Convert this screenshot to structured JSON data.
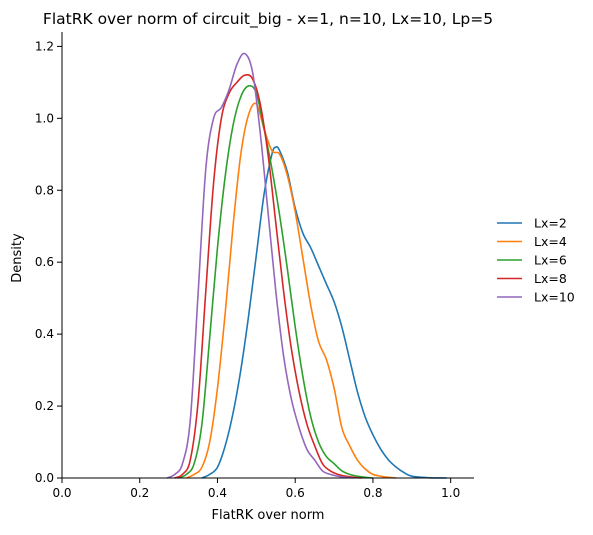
{
  "chart_data": {
    "type": "line",
    "title": "FlatRK over norm of circuit_big - x=1, n=10, Lx=10, Lp=5",
    "xlabel": "FlatRK over norm",
    "ylabel": "Density",
    "xlim": [
      0.0,
      1.06
    ],
    "ylim": [
      0.0,
      1.24
    ],
    "xticks": [
      "0.0",
      "0.2",
      "0.4",
      "0.6",
      "0.8",
      "1.0"
    ],
    "yticks": [
      "0.0",
      "0.2",
      "0.4",
      "0.6",
      "0.8",
      "1.0",
      "1.2"
    ],
    "grid": false,
    "legend_position": "right",
    "series": [
      {
        "name": "Lx=2",
        "color": "#1f77b4",
        "x": [
          0.36,
          0.38,
          0.4,
          0.42,
          0.44,
          0.46,
          0.48,
          0.5,
          0.52,
          0.54,
          0.55,
          0.56,
          0.58,
          0.6,
          0.62,
          0.64,
          0.66,
          0.68,
          0.7,
          0.72,
          0.74,
          0.76,
          0.78,
          0.8,
          0.82,
          0.84,
          0.86,
          0.88,
          0.9,
          0.94,
          0.99
        ],
        "y": [
          0.0,
          0.01,
          0.03,
          0.09,
          0.18,
          0.3,
          0.45,
          0.62,
          0.79,
          0.9,
          0.92,
          0.91,
          0.85,
          0.75,
          0.68,
          0.64,
          0.59,
          0.54,
          0.49,
          0.42,
          0.33,
          0.24,
          0.17,
          0.12,
          0.08,
          0.05,
          0.03,
          0.015,
          0.005,
          0.001,
          0.0
        ]
      },
      {
        "name": "Lx=4",
        "color": "#ff7f0e",
        "x": [
          0.32,
          0.34,
          0.36,
          0.38,
          0.4,
          0.42,
          0.44,
          0.46,
          0.48,
          0.5,
          0.52,
          0.54,
          0.56,
          0.58,
          0.6,
          0.62,
          0.64,
          0.66,
          0.68,
          0.7,
          0.72,
          0.74,
          0.76,
          0.78,
          0.8,
          0.82,
          0.84,
          0.86
        ],
        "y": [
          0.0,
          0.01,
          0.03,
          0.1,
          0.25,
          0.46,
          0.7,
          0.9,
          1.01,
          1.04,
          0.97,
          0.91,
          0.9,
          0.84,
          0.74,
          0.61,
          0.48,
          0.38,
          0.33,
          0.25,
          0.14,
          0.09,
          0.05,
          0.025,
          0.01,
          0.005,
          0.002,
          0.0
        ]
      },
      {
        "name": "Lx=6",
        "color": "#2ca02c",
        "x": [
          0.3,
          0.32,
          0.34,
          0.36,
          0.38,
          0.4,
          0.42,
          0.44,
          0.46,
          0.48,
          0.5,
          0.52,
          0.54,
          0.56,
          0.58,
          0.6,
          0.62,
          0.64,
          0.66,
          0.68,
          0.7,
          0.72,
          0.74,
          0.76,
          0.78,
          0.8
        ],
        "y": [
          0.0,
          0.01,
          0.04,
          0.15,
          0.39,
          0.64,
          0.84,
          0.98,
          1.06,
          1.09,
          1.07,
          0.97,
          0.86,
          0.73,
          0.58,
          0.42,
          0.28,
          0.17,
          0.1,
          0.06,
          0.04,
          0.02,
          0.01,
          0.005,
          0.002,
          0.0
        ]
      },
      {
        "name": "Lx=8",
        "color": "#d62728",
        "x": [
          0.29,
          0.31,
          0.33,
          0.35,
          0.37,
          0.39,
          0.41,
          0.43,
          0.45,
          0.47,
          0.49,
          0.51,
          0.53,
          0.55,
          0.57,
          0.59,
          0.61,
          0.63,
          0.65,
          0.67,
          0.69,
          0.71,
          0.73,
          0.75,
          0.77
        ],
        "y": [
          0.0,
          0.01,
          0.05,
          0.21,
          0.52,
          0.82,
          1.0,
          1.07,
          1.1,
          1.12,
          1.11,
          1.04,
          0.9,
          0.71,
          0.52,
          0.36,
          0.24,
          0.15,
          0.09,
          0.04,
          0.02,
          0.01,
          0.005,
          0.002,
          0.0
        ]
      },
      {
        "name": "Lx=10",
        "color": "#9467bd",
        "x": [
          0.27,
          0.29,
          0.31,
          0.33,
          0.35,
          0.37,
          0.39,
          0.41,
          0.43,
          0.45,
          0.47,
          0.49,
          0.51,
          0.53,
          0.55,
          0.57,
          0.59,
          0.61,
          0.63,
          0.65,
          0.67,
          0.69,
          0.71,
          0.73,
          0.75
        ],
        "y": [
          0.0,
          0.01,
          0.04,
          0.16,
          0.51,
          0.86,
          1.0,
          1.03,
          1.08,
          1.15,
          1.18,
          1.13,
          0.96,
          0.74,
          0.52,
          0.34,
          0.22,
          0.14,
          0.08,
          0.05,
          0.02,
          0.01,
          0.005,
          0.002,
          0.0
        ]
      }
    ]
  }
}
